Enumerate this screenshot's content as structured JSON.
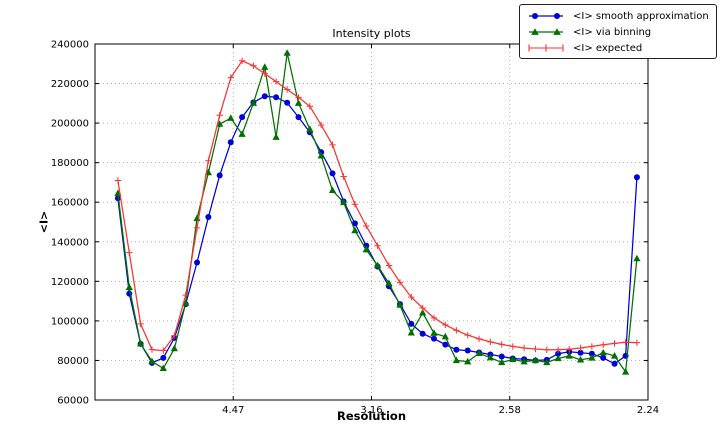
{
  "chart_data": {
    "type": "line",
    "title": "Intensity plots",
    "xlabel": "Resolution",
    "ylabel": "<I>",
    "grid": true,
    "legend_position": "upper right, overlapping top-right corner of axes",
    "x_axis": {
      "label": "Resolution",
      "scale_note": "resolution in d-spacing, ticks equally spaced in 1/d^2 from 0 to 0.2",
      "s_range": [
        0.0,
        0.2
      ],
      "ticks": [
        {
          "s": 0.05,
          "label": "4.47"
        },
        {
          "s": 0.1,
          "label": "3.16"
        },
        {
          "s": 0.15,
          "label": "2.58"
        },
        {
          "s": 0.2,
          "label": "2.24"
        }
      ]
    },
    "y_axis": {
      "label": "<I>",
      "range": [
        60000,
        240000
      ],
      "tick_step": 20000,
      "ticks": [
        {
          "value": 240000,
          "label": "240000"
        },
        {
          "value": 220000,
          "label": "220000"
        },
        {
          "value": 200000,
          "label": "200000"
        },
        {
          "value": 180000,
          "label": "180000"
        },
        {
          "value": 160000,
          "label": "160000"
        },
        {
          "value": 140000,
          "label": "140000"
        },
        {
          "value": 120000,
          "label": "120000"
        },
        {
          "value": 100000,
          "label": "100000"
        },
        {
          "value": 80000,
          "label": "80000"
        },
        {
          "value": 60000,
          "label": "60000"
        }
      ]
    },
    "x_s": [
      0.0083,
      0.0124,
      0.0165,
      0.0206,
      0.0247,
      0.0287,
      0.0328,
      0.0369,
      0.041,
      0.0451,
      0.0491,
      0.0532,
      0.0573,
      0.0614,
      0.0655,
      0.0695,
      0.0736,
      0.0777,
      0.0818,
      0.0859,
      0.0899,
      0.094,
      0.0981,
      0.1022,
      0.1063,
      0.1103,
      0.1144,
      0.1185,
      0.1226,
      0.1267,
      0.1307,
      0.1348,
      0.1389,
      0.143,
      0.1471,
      0.1511,
      0.1552,
      0.1593,
      0.1634,
      0.1675,
      0.1715,
      0.1756,
      0.1797,
      0.1838,
      0.1879,
      0.1919,
      0.196
    ],
    "series": [
      {
        "name": "<I> smooth approximation",
        "color": "#0000dd",
        "marker": "circle",
        "values": [
          162000,
          113800,
          88400,
          78800,
          81300,
          91400,
          108500,
          129500,
          152500,
          173600,
          190300,
          203000,
          210500,
          213600,
          213100,
          210300,
          203000,
          195400,
          185300,
          174600,
          160400,
          149300,
          138000,
          127500,
          117500,
          108500,
          98500,
          93500,
          91000,
          88000,
          85400,
          85000,
          84000,
          83000,
          82000,
          81000,
          80600,
          80000,
          80300,
          83400,
          84400,
          83900,
          83400,
          81300,
          78300,
          82300,
          172600
        ]
      },
      {
        "name": "<I> via binning",
        "color": "#007000",
        "marker": "triangle",
        "values": [
          164500,
          117000,
          88400,
          79500,
          76000,
          86000,
          109000,
          151800,
          175000,
          199500,
          202500,
          194400,
          210100,
          228300,
          192900,
          235400,
          210100,
          196900,
          183500,
          166000,
          159900,
          145700,
          136000,
          128000,
          119000,
          108000,
          94000,
          104100,
          93800,
          92000,
          80000,
          79400,
          83600,
          81400,
          79000,
          80500,
          79400,
          80000,
          79000,
          81000,
          82300,
          80300,
          81300,
          83900,
          82300,
          74200,
          131500
        ]
      },
      {
        "name": "<I> expected",
        "color": "#fb3333",
        "marker": "plus",
        "values": [
          171000,
          134500,
          98500,
          85500,
          85000,
          92500,
          113000,
          147000,
          181000,
          204000,
          223000,
          231500,
          229000,
          225000,
          221000,
          217000,
          213000,
          208500,
          199000,
          189000,
          173000,
          159000,
          148000,
          138000,
          128000,
          119500,
          112000,
          106500,
          101500,
          98000,
          95200,
          92800,
          90900,
          89400,
          88100,
          87100,
          86300,
          85800,
          85400,
          85400,
          85700,
          86300,
          87100,
          87900,
          88600,
          89200,
          89000
        ]
      }
    ]
  }
}
